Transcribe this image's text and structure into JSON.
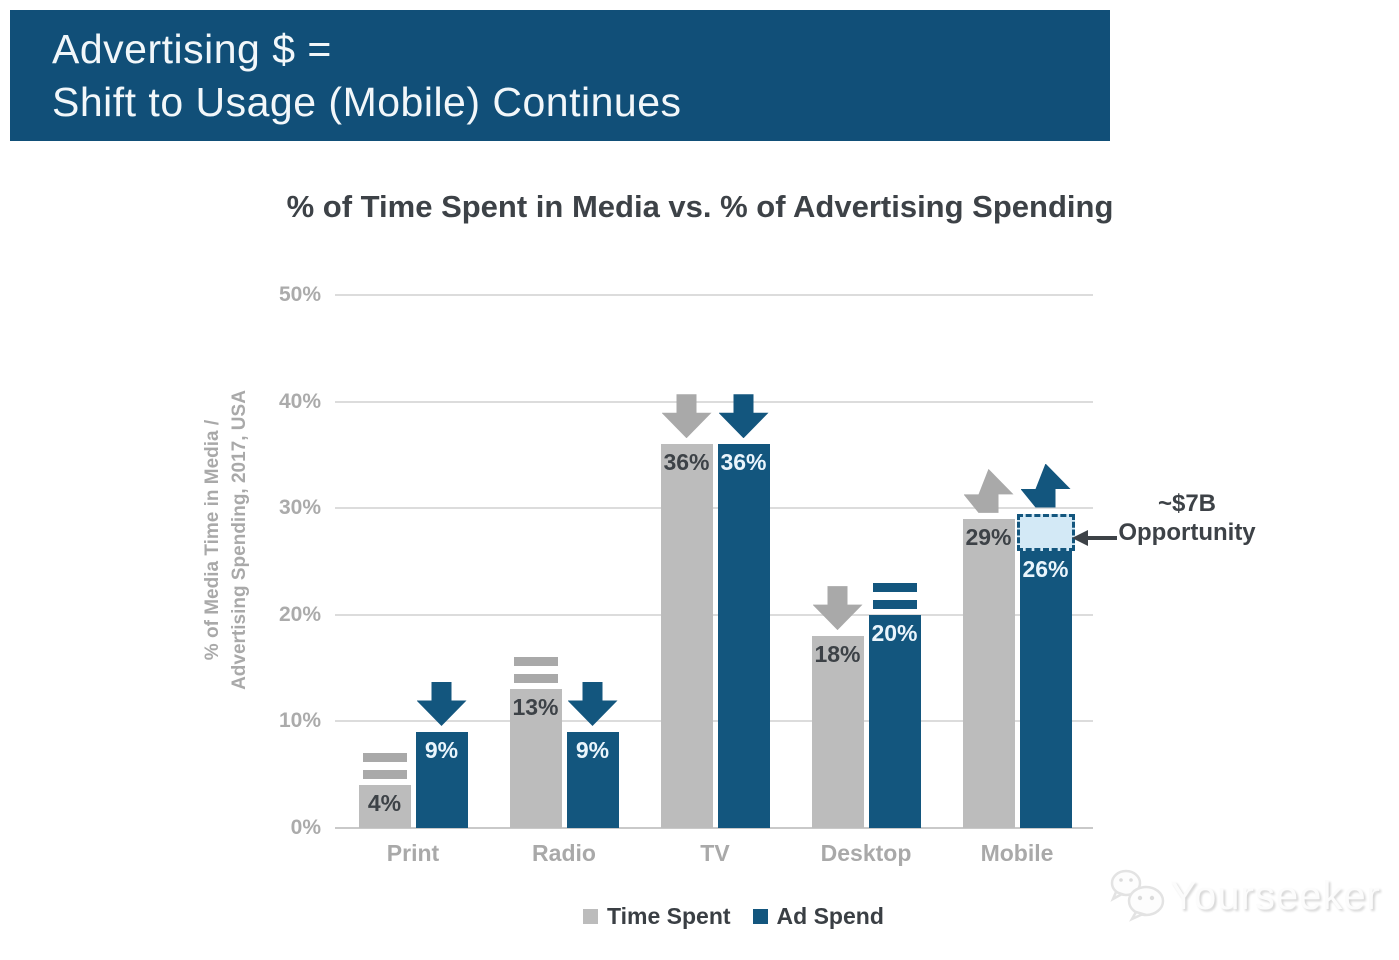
{
  "header": {
    "title_line1": "Advertising $ =",
    "title_line2": "Shift to Usage (Mobile) Continues"
  },
  "chart_data": {
    "type": "bar",
    "title": "% of Time Spent in Media vs. % of Advertising Spending",
    "ylabel": [
      "% of Media Time in Media /",
      "Advertising Spending, 2017, USA"
    ],
    "categories": [
      "Print",
      "Radio",
      "TV",
      "Desktop",
      "Mobile"
    ],
    "series": [
      {
        "name": "Time Spent",
        "color": "#BCBCBC",
        "marker_color": "#A9A9A9",
        "values": [
          4,
          13,
          36,
          18,
          29
        ],
        "data_labels": [
          "4%",
          "13%",
          "36%",
          "18%",
          "29%"
        ],
        "trend_markers": [
          "flat",
          "flat",
          "down",
          "down",
          "up"
        ]
      },
      {
        "name": "Ad Spend",
        "color": "#13567E",
        "marker_color": "#13567E",
        "values": [
          9,
          9,
          36,
          20,
          26
        ],
        "data_labels": [
          "9%",
          "9%",
          "36%",
          "20%",
          "26%"
        ],
        "trend_markers": [
          "down",
          "down",
          "down",
          "flat",
          "up"
        ]
      }
    ],
    "y_axis": {
      "min": 0,
      "max": 50,
      "ticks": [
        "0%",
        "10%",
        "20%",
        "30%",
        "40%",
        "50%"
      ],
      "grid": true
    },
    "legend_position": "bottom",
    "annotation": {
      "line1": "~$7B",
      "line2": "Opportunity",
      "target_category": "Mobile",
      "target_series": "Ad Spend",
      "highlight_range": [
        26,
        29.5
      ]
    }
  },
  "watermark": {
    "text": "Yourseeker"
  },
  "colors": {
    "banner_bg": "#114F78",
    "bar_gray": "#BCBCBC",
    "bar_blue": "#13567E",
    "highlight_fill": "#D3E9F6",
    "highlight_border": "#13567E",
    "grid": "#DCDCDC",
    "axis_text": "#A9A9A9",
    "dark_text": "#3D4247",
    "bar_label_light": "#EAF5FC"
  }
}
